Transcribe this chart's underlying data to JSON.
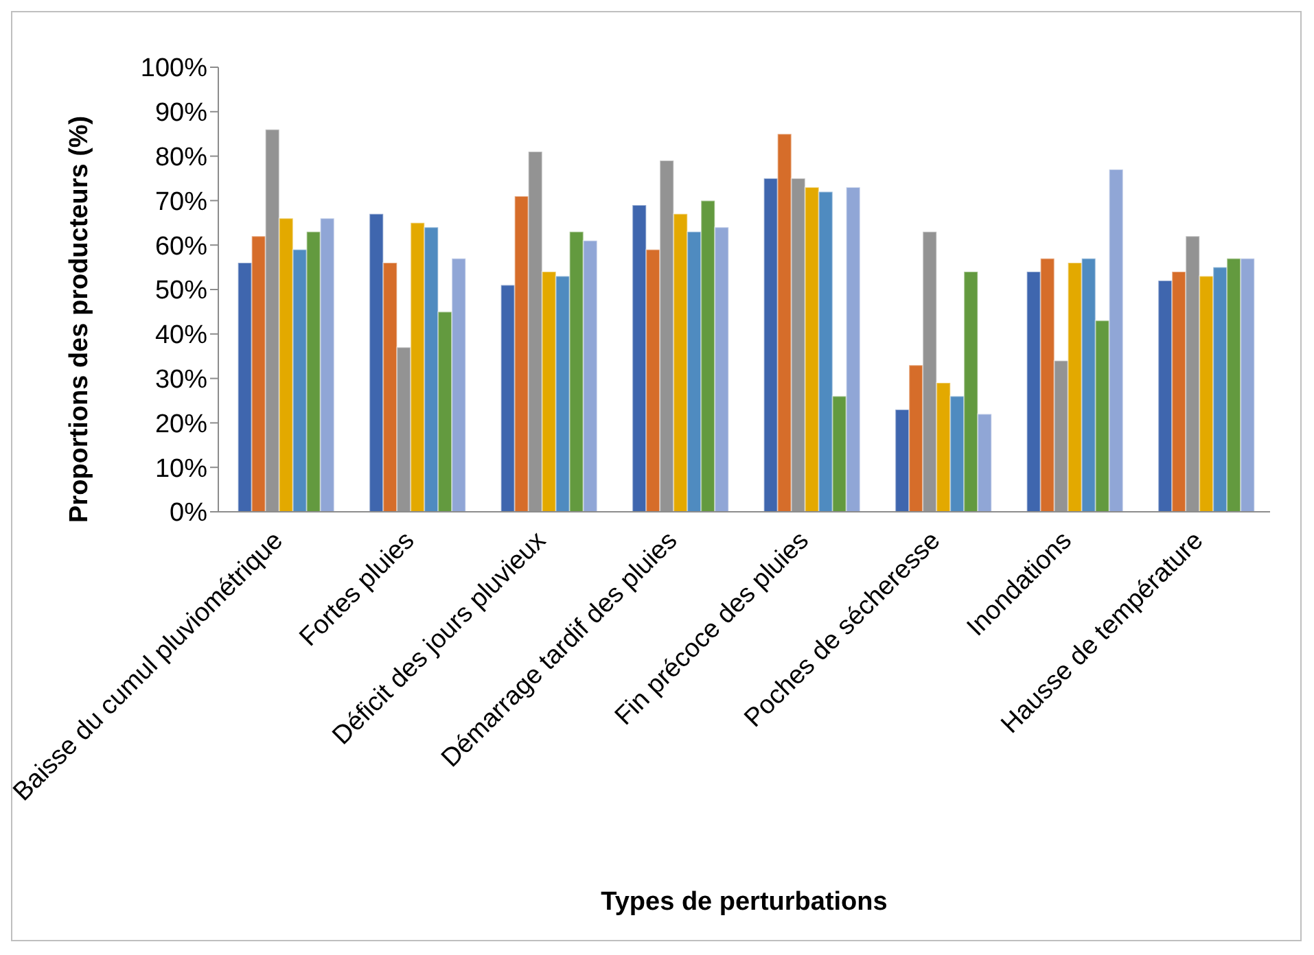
{
  "chart_data": {
    "type": "bar",
    "xlabel": "Types de perturbations",
    "ylabel": "Proportions des producteurs (%)",
    "categories": [
      "Baisse du cumul pluviométrique",
      "Fortes pluies",
      "Déficit des jours pluvieux",
      "Démarrage tardif des pluies",
      "Fin précoce des pluies",
      "Poches de sécheresse",
      "Inondations",
      "Hausse de température"
    ],
    "series": [
      {
        "color": "#3f66ae",
        "values": [
          56,
          67,
          51,
          69,
          75,
          23,
          54,
          52
        ]
      },
      {
        "color": "#d66d2a",
        "values": [
          62,
          56,
          71,
          59,
          85,
          33,
          57,
          54
        ]
      },
      {
        "color": "#939393",
        "values": [
          86,
          37,
          81,
          79,
          75,
          63,
          34,
          62
        ]
      },
      {
        "color": "#e3a900",
        "values": [
          66,
          65,
          54,
          67,
          73,
          29,
          56,
          53
        ]
      },
      {
        "color": "#4f8bc0",
        "values": [
          59,
          64,
          53,
          63,
          72,
          26,
          57,
          55
        ]
      },
      {
        "color": "#639a3f",
        "values": [
          63,
          45,
          63,
          70,
          26,
          54,
          43,
          57
        ]
      },
      {
        "color": "#90a6d6",
        "values": [
          66,
          57,
          61,
          64,
          73,
          22,
          77,
          57
        ]
      }
    ],
    "ylim": [
      0,
      100
    ],
    "yticks": [
      {
        "value": 0,
        "label": "0%"
      },
      {
        "value": 10,
        "label": "10%"
      },
      {
        "value": 20,
        "label": "20%"
      },
      {
        "value": 30,
        "label": "30%"
      },
      {
        "value": 40,
        "label": "40%"
      },
      {
        "value": 50,
        "label": "50%"
      },
      {
        "value": 60,
        "label": "60%"
      },
      {
        "value": 70,
        "label": "70%"
      },
      {
        "value": 80,
        "label": "80%"
      },
      {
        "value": 90,
        "label": "90%"
      },
      {
        "value": 100,
        "label": "100%"
      }
    ],
    "grid": false
  }
}
